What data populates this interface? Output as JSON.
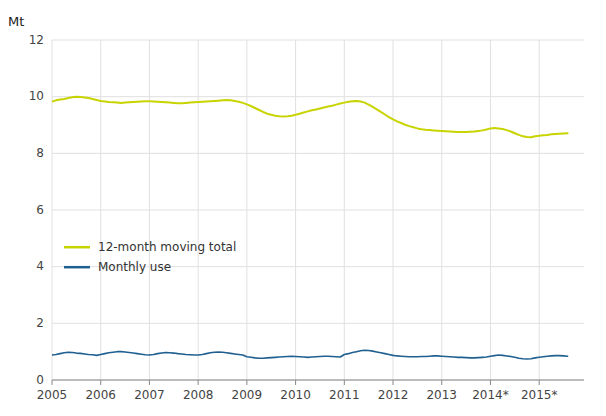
{
  "chart_data": {
    "type": "line",
    "y_label": "Mt",
    "x": [
      2005,
      2005.0833333333333,
      2005.1666666666667,
      2005.25,
      2005.3333333333333,
      2005.4166666666667,
      2005.5,
      2005.5833333333333,
      2005.6666666666667,
      2005.75,
      2005.8333333333333,
      2005.9166666666667,
      2006,
      2006.0833333333333,
      2006.1666666666667,
      2006.25,
      2006.3333333333333,
      2006.4166666666667,
      2006.5,
      2006.5833333333333,
      2006.6666666666667,
      2006.75,
      2006.8333333333333,
      2006.9166666666667,
      2007,
      2007.0833333333333,
      2007.1666666666667,
      2007.25,
      2007.3333333333333,
      2007.4166666666667,
      2007.5,
      2007.5833333333333,
      2007.6666666666667,
      2007.75,
      2007.8333333333333,
      2007.9166666666667,
      2008,
      2008.0833333333333,
      2008.1666666666667,
      2008.25,
      2008.3333333333333,
      2008.4166666666667,
      2008.5,
      2008.5833333333333,
      2008.6666666666667,
      2008.75,
      2008.8333333333333,
      2008.9166666666667,
      2009,
      2009.0833333333333,
      2009.1666666666667,
      2009.25,
      2009.3333333333333,
      2009.4166666666667,
      2009.5,
      2009.5833333333333,
      2009.6666666666667,
      2009.75,
      2009.8333333333333,
      2009.9166666666667,
      2010,
      2010.0833333333333,
      2010.1666666666667,
      2010.25,
      2010.3333333333333,
      2010.4166666666667,
      2010.5,
      2010.5833333333333,
      2010.6666666666667,
      2010.75,
      2010.8333333333333,
      2010.9166666666667,
      2011,
      2011.0833333333333,
      2011.1666666666667,
      2011.25,
      2011.3333333333333,
      2011.4166666666667,
      2011.5,
      2011.5833333333333,
      2011.6666666666667,
      2011.75,
      2011.8333333333333,
      2011.9166666666667,
      2012,
      2012.0833333333333,
      2012.1666666666667,
      2012.25,
      2012.3333333333333,
      2012.4166666666667,
      2012.5,
      2012.5833333333333,
      2012.6666666666667,
      2012.75,
      2012.8333333333333,
      2012.9166666666667,
      2013,
      2013.0833333333333,
      2013.1666666666667,
      2013.25,
      2013.3333333333333,
      2013.4166666666667,
      2013.5,
      2013.5833333333333,
      2013.6666666666667,
      2013.75,
      2013.8333333333333,
      2013.9166666666667,
      2014,
      2014.0833333333333,
      2014.1666666666667,
      2014.25,
      2014.3333333333333,
      2014.4166666666667,
      2014.5,
      2014.5833333333333,
      2014.6666666666667,
      2014.75,
      2014.8333333333333,
      2014.9166666666667,
      2015,
      2015.0833333333333,
      2015.1666666666667,
      2015.25,
      2015.3333333333333,
      2015.4166666666667,
      2015.5,
      2015.5833333333333
    ],
    "series": [
      {
        "name": "12-month moving total",
        "color": "#c8d400",
        "values": [
          9.83,
          9.87,
          9.9,
          9.92,
          9.95,
          9.98,
          10.0,
          9.99,
          9.97,
          9.95,
          9.92,
          9.88,
          9.85,
          9.83,
          9.81,
          9.8,
          9.79,
          9.78,
          9.79,
          9.8,
          9.81,
          9.82,
          9.83,
          9.84,
          9.84,
          9.83,
          9.82,
          9.81,
          9.8,
          9.79,
          9.78,
          9.77,
          9.77,
          9.78,
          9.79,
          9.8,
          9.81,
          9.82,
          9.83,
          9.84,
          9.85,
          9.86,
          9.87,
          9.88,
          9.87,
          9.85,
          9.82,
          9.78,
          9.73,
          9.67,
          9.6,
          9.53,
          9.46,
          9.4,
          9.36,
          9.33,
          9.31,
          9.3,
          9.31,
          9.33,
          9.36,
          9.4,
          9.44,
          9.48,
          9.52,
          9.55,
          9.58,
          9.62,
          9.65,
          9.68,
          9.72,
          9.76,
          9.79,
          9.82,
          9.84,
          9.85,
          9.83,
          9.79,
          9.72,
          9.64,
          9.55,
          9.46,
          9.37,
          9.28,
          9.2,
          9.13,
          9.07,
          9.01,
          8.96,
          8.92,
          8.88,
          8.85,
          8.83,
          8.82,
          8.81,
          8.8,
          8.79,
          8.78,
          8.77,
          8.76,
          8.75,
          8.75,
          8.75,
          8.76,
          8.77,
          8.79,
          8.81,
          8.84,
          8.88,
          8.89,
          8.88,
          8.86,
          8.82,
          8.77,
          8.71,
          8.65,
          8.6,
          8.58,
          8.57,
          8.6,
          8.62,
          8.64,
          8.65,
          8.67,
          8.68,
          8.69,
          8.7,
          8.71
        ]
      },
      {
        "name": "Monthly use",
        "color": "#1f6091",
        "values": [
          0.88,
          0.9,
          0.93,
          0.96,
          0.98,
          0.97,
          0.95,
          0.94,
          0.92,
          0.9,
          0.89,
          0.87,
          0.9,
          0.93,
          0.96,
          0.98,
          1.0,
          1.0,
          0.99,
          0.97,
          0.95,
          0.93,
          0.91,
          0.89,
          0.88,
          0.9,
          0.93,
          0.95,
          0.97,
          0.96,
          0.95,
          0.93,
          0.92,
          0.9,
          0.89,
          0.88,
          0.88,
          0.9,
          0.93,
          0.96,
          0.98,
          0.99,
          0.98,
          0.96,
          0.94,
          0.92,
          0.9,
          0.88,
          0.82,
          0.8,
          0.78,
          0.77,
          0.77,
          0.78,
          0.79,
          0.8,
          0.81,
          0.82,
          0.83,
          0.84,
          0.83,
          0.82,
          0.81,
          0.8,
          0.81,
          0.82,
          0.83,
          0.84,
          0.84,
          0.83,
          0.82,
          0.81,
          0.9,
          0.93,
          0.97,
          1.0,
          1.03,
          1.05,
          1.04,
          1.02,
          0.99,
          0.96,
          0.93,
          0.9,
          0.87,
          0.85,
          0.84,
          0.83,
          0.82,
          0.82,
          0.82,
          0.83,
          0.83,
          0.84,
          0.85,
          0.85,
          0.84,
          0.83,
          0.82,
          0.81,
          0.8,
          0.8,
          0.79,
          0.78,
          0.78,
          0.79,
          0.8,
          0.81,
          0.84,
          0.86,
          0.88,
          0.87,
          0.85,
          0.83,
          0.8,
          0.77,
          0.75,
          0.74,
          0.75,
          0.78,
          0.8,
          0.82,
          0.84,
          0.85,
          0.86,
          0.86,
          0.85,
          0.84
        ]
      }
    ],
    "xlim": [
      2005.0,
      2015.92
    ],
    "xticks": [
      2005,
      2006,
      2007,
      2008,
      2009,
      2010,
      2011,
      2012,
      2013,
      {
        "value": 2014,
        "label": "2014*"
      },
      {
        "value": 2015,
        "label": "2015*"
      }
    ],
    "ylim": [
      0,
      12
    ],
    "yticks": [
      0,
      2,
      4,
      6,
      8,
      10,
      12
    ],
    "grid": true,
    "legend": "center left"
  }
}
